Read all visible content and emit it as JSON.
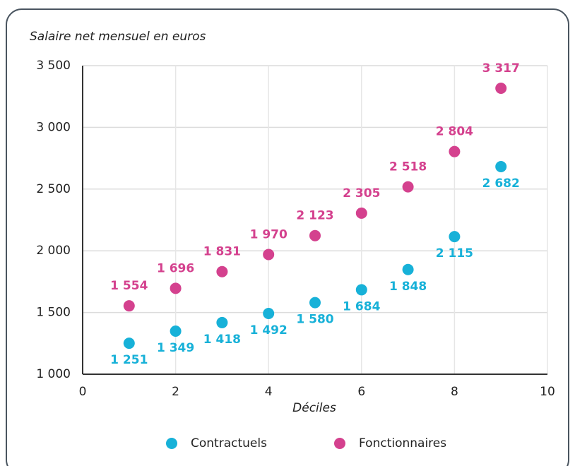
{
  "chart_data": {
    "type": "scatter",
    "title": "Salaire net mensuel en euros",
    "xlabel": "Déciles",
    "x": [
      1,
      2,
      3,
      4,
      5,
      6,
      7,
      8,
      9
    ],
    "series": [
      {
        "name": "Contractuels",
        "color": "#17b1d8",
        "label_side": "below",
        "values": [
          1251,
          1349,
          1418,
          1492,
          1580,
          1684,
          1848,
          2115,
          2682
        ],
        "value_labels": [
          "1 251",
          "1 349",
          "1 418",
          "1 492",
          "1 580",
          "1 684",
          "1 848",
          "2 115",
          "2 682"
        ]
      },
      {
        "name": "Fonctionnaires",
        "color": "#d4418e",
        "label_side": "above",
        "values": [
          1554,
          1696,
          1831,
          1970,
          2123,
          2305,
          2518,
          2804,
          3317
        ],
        "value_labels": [
          "1 554",
          "1 696",
          "1 831",
          "1 970",
          "2 123",
          "2 305",
          "2 518",
          "2 804",
          "3 317"
        ]
      }
    ],
    "xlim": [
      0,
      10
    ],
    "xticks": [
      0,
      2,
      4,
      6,
      8,
      10
    ],
    "ylim": [
      1000,
      3500
    ],
    "yticks": [
      {
        "value": 1000,
        "label": "1 000"
      },
      {
        "value": 1500,
        "label": "1 500"
      },
      {
        "value": 2000,
        "label": "2 000"
      },
      {
        "value": 2500,
        "label": "2 500"
      },
      {
        "value": 3000,
        "label": "3 000"
      },
      {
        "value": 3500,
        "label": "3 500"
      }
    ],
    "grid": true,
    "legend": "bottom"
  }
}
